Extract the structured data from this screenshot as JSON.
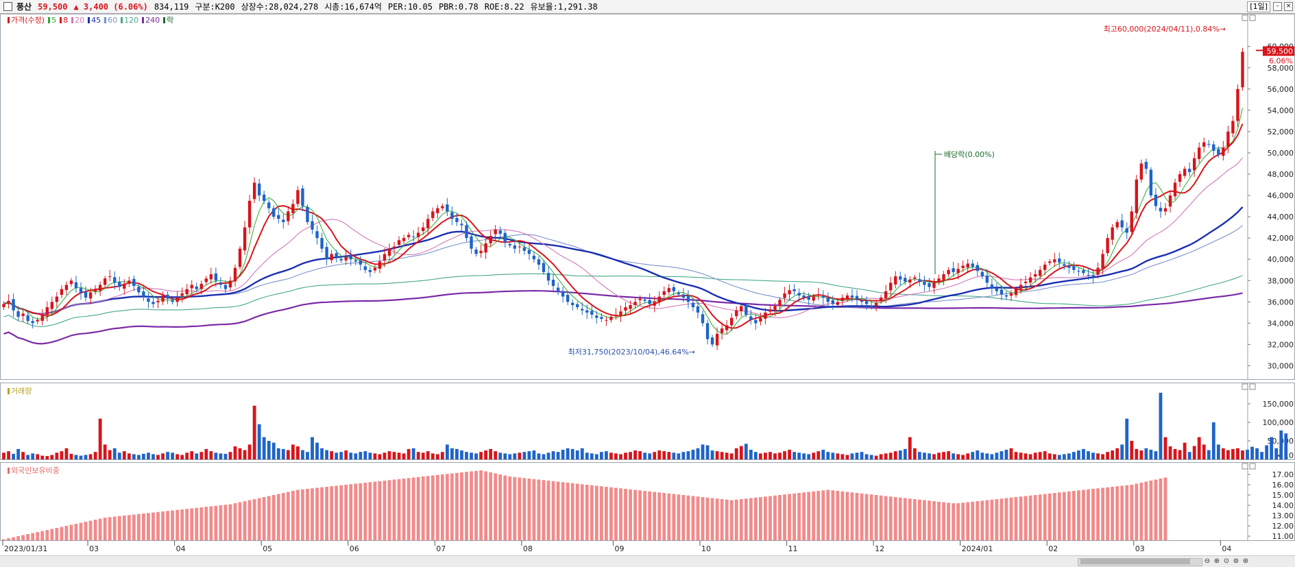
{
  "header": {
    "name": "풍산",
    "price": "59,500",
    "change": "▲ 3,400 (6.06%)",
    "volume": "834,119",
    "category": "구분:K200",
    "shares": "상장수:28,024,278",
    "market_cap": "시총:16,674억",
    "per": "PER:10.05",
    "pbr": "PBR:0.78",
    "roe": "ROE:8.22",
    "float": "유보율:1,291.38",
    "period": "[1일]"
  },
  "price_legend": [
    {
      "label": "가격(수정)",
      "color": "#d8141b"
    },
    {
      "label": "5",
      "color": "#2fa82f"
    },
    {
      "label": "8",
      "color": "#d8141b"
    },
    {
      "label": "20",
      "color": "#d078b8"
    },
    {
      "label": "45",
      "color": "#1a2fb0"
    },
    {
      "label": "60",
      "color": "#7890c8"
    },
    {
      "label": "120",
      "color": "#44a888"
    },
    {
      "label": "240",
      "color": "#7a2aa8"
    },
    {
      "label": "락",
      "color": "#1a6a2a"
    }
  ],
  "volume_legend": {
    "label": "거래량",
    "color": "#b8a020"
  },
  "foreign_legend": {
    "label": "외국인보유비중",
    "color": "#e86868"
  },
  "annotations": {
    "high": "최고60,000(2024/04/11),0.84%→",
    "low": "최저31,750(2023/10/04),46.64%→",
    "dividend": "배당락(0.00%)",
    "current_price": "59,500",
    "current_pct": "6.06%",
    "volume_unit": "× 10"
  },
  "colors": {
    "up": "#d8141b",
    "down": "#1e64c8",
    "foreign_bar": "#f28a8a"
  },
  "chart_data": [
    {
      "type": "line",
      "name": "price",
      "x_tick_labels": [
        "2023/01/31",
        "03",
        "04",
        "05",
        "06",
        "07",
        "08",
        "09",
        "10",
        "11",
        "12",
        "2024/01",
        "02",
        "03",
        "04"
      ],
      "y_ticks": [
        "30,000",
        "32,000",
        "34,000",
        "36,000",
        "38,000",
        "40,000",
        "42,000",
        "44,000",
        "46,000",
        "48,000",
        "50,000",
        "52,000",
        "54,000",
        "56,000",
        "58,000",
        "60,000"
      ],
      "ylim": [
        29000,
        61400
      ],
      "closes": [
        35800,
        36100,
        35200,
        34600,
        34900,
        34200,
        34000,
        34300,
        34700,
        35500,
        36000,
        36500,
        37200,
        37600,
        38000,
        37300,
        36800,
        36400,
        36900,
        37200,
        37600,
        38200,
        38400,
        37800,
        37400,
        37700,
        38000,
        37500,
        36900,
        36500,
        36000,
        35800,
        36100,
        36600,
        36300,
        36000,
        36400,
        36800,
        37200,
        37600,
        37200,
        37700,
        38200,
        38600,
        38000,
        37600,
        37200,
        38000,
        39200,
        41000,
        43000,
        45500,
        47200,
        46000,
        45500,
        44800,
        44000,
        43800,
        43500,
        44500,
        45200,
        46500,
        45000,
        43500,
        42800,
        42000,
        41000,
        40000,
        40500,
        40200,
        39900,
        40200,
        40000,
        39800,
        39500,
        39000,
        38800,
        39200,
        39800,
        40500,
        41000,
        41200,
        41800,
        42000,
        42300,
        42100,
        42500,
        43000,
        43800,
        44500,
        44800,
        45000,
        44500,
        43800,
        43500,
        43200,
        42000,
        41000,
        40500,
        40800,
        41500,
        42200,
        42800,
        42400,
        41600,
        41300,
        41000,
        41200,
        40800,
        40500,
        40000,
        39500,
        38800,
        38000,
        37500,
        37000,
        36500,
        36000,
        35700,
        35500,
        35200,
        35000,
        34800,
        34500,
        34400,
        34300,
        34600,
        34800,
        35100,
        35500,
        35700,
        36000,
        36300,
        36100,
        35800,
        36000,
        36500,
        37000,
        37300,
        37000,
        36700,
        36400,
        36000,
        35500,
        35000,
        34000,
        32500,
        32000,
        33000,
        33500,
        33800,
        34500,
        35200,
        35600,
        34800,
        34300,
        34000,
        34500,
        35000,
        35300,
        35600,
        36200,
        36800,
        37100,
        37000,
        36600,
        36400,
        36200,
        36500,
        36700,
        36400,
        36000,
        35800,
        36000,
        36400,
        36600,
        36400,
        36200,
        36000,
        35800,
        35600,
        35900,
        36400,
        37000,
        37800,
        38400,
        38100,
        37900,
        38100,
        38300,
        37900,
        37600,
        37400,
        37800,
        38200,
        38600,
        39000,
        38800,
        39100,
        39400,
        39600,
        39300,
        38900,
        38400,
        37800,
        37300,
        37000,
        36700,
        36500,
        36800,
        37200,
        37600,
        37900,
        38300,
        38600,
        39000,
        39500,
        39800,
        40000,
        39700,
        39400,
        39200,
        39000,
        38900,
        38700,
        38500,
        38400,
        39200,
        40500,
        42000,
        43000,
        43500,
        43000,
        42500,
        44500,
        47500,
        49000,
        48500,
        46000,
        45000,
        44500,
        44800,
        46000,
        47200,
        48000,
        48500,
        48200,
        49500,
        50500,
        51000,
        50800,
        50200,
        49800,
        50500,
        52000,
        53000,
        56000,
        59500
      ],
      "highlights": {
        "high": 60000,
        "low": 31750
      }
    },
    {
      "type": "bar",
      "name": "거래량",
      "y_ticks": [
        "50,000",
        "100,000",
        "150,000"
      ],
      "ylim": [
        0,
        200000
      ],
      "values": [
        18000,
        22000,
        15000,
        28000,
        20000,
        12000,
        16000,
        14000,
        10000,
        9000,
        12000,
        18000,
        22000,
        30000,
        15000,
        12000,
        10000,
        12000,
        14000,
        20000,
        110000,
        40000,
        25000,
        30000,
        18000,
        22000,
        16000,
        14000,
        12000,
        15000,
        18000,
        14000,
        12000,
        16000,
        20000,
        18000,
        14000,
        12000,
        18000,
        22000,
        16000,
        20000,
        28000,
        22000,
        18000,
        16000,
        15000,
        20000,
        35000,
        30000,
        25000,
        40000,
        145000,
        95000,
        60000,
        50000,
        45000,
        30000,
        28000,
        25000,
        40000,
        35000,
        25000,
        20000,
        60000,
        45000,
        30000,
        25000,
        22000,
        18000,
        20000,
        24000,
        18000,
        16000,
        20000,
        22000,
        18000,
        16000,
        14000,
        18000,
        22000,
        20000,
        18000,
        16000,
        28000,
        30000,
        20000,
        18000,
        22000,
        16000,
        14000,
        20000,
        40000,
        30000,
        28000,
        24000,
        20000,
        18000,
        16000,
        20000,
        24000,
        28000,
        22000,
        18000,
        16000,
        14000,
        16000,
        18000,
        20000,
        22000,
        24000,
        16000,
        14000,
        18000,
        22000,
        20000,
        26000,
        30000,
        28000,
        24000,
        30000,
        18000,
        16000,
        14000,
        20000,
        22000,
        18000,
        16000,
        14000,
        18000,
        20000,
        24000,
        22000,
        18000,
        16000,
        20000,
        24000,
        22000,
        20000,
        18000,
        16000,
        20000,
        22000,
        26000,
        30000,
        40000,
        38000,
        24000,
        22000,
        20000,
        18000,
        16000,
        30000,
        36000,
        42000,
        26000,
        20000,
        16000,
        18000,
        20000,
        16000,
        18000,
        22000,
        26000,
        20000,
        18000,
        16000,
        14000,
        18000,
        22000,
        26000,
        20000,
        18000,
        16000,
        14000,
        12000,
        16000,
        18000,
        20000,
        14000,
        12000,
        10000,
        14000,
        16000,
        18000,
        22000,
        24000,
        28000,
        60000,
        30000,
        20000,
        18000,
        16000,
        14000,
        18000,
        20000,
        22000,
        16000,
        14000,
        12000,
        16000,
        20000,
        24000,
        18000,
        16000,
        14000,
        18000,
        22000,
        26000,
        30000,
        20000,
        18000,
        16000,
        14000,
        18000,
        20000,
        22000,
        16000,
        14000,
        12000,
        14000,
        16000,
        20000,
        24000,
        28000,
        22000,
        18000,
        16000,
        14000,
        20000,
        24000,
        30000,
        40000,
        110000,
        50000,
        28000,
        24000,
        30000,
        26000,
        22000,
        180000,
        60000,
        35000,
        28000,
        25000,
        45000,
        20000,
        36000,
        60000,
        40000,
        25000,
        100000,
        40000,
        30000,
        25000,
        28000,
        30000,
        24000,
        26000,
        34000,
        30000,
        20000,
        38000,
        60000,
        30000,
        78000,
        70000
      ],
      "color_rule": "up days red, down days blue"
    },
    {
      "type": "bar",
      "name": "외국인보유비중",
      "y_ticks": [
        "11.00",
        "12.00",
        "13.00",
        "14.00",
        "15.00",
        "16.00",
        "17.00"
      ],
      "ylim": [
        10.6,
        17.8
      ],
      "values": [
        10.7,
        10.8,
        10.9,
        11.0,
        11.1,
        11.2,
        11.3,
        11.4,
        11.5,
        11.6,
        11.7,
        11.8,
        11.9,
        12.0,
        12.1,
        12.2,
        12.3,
        12.4,
        12.5,
        12.6,
        12.7,
        12.8,
        12.85,
        12.9,
        12.95,
        13.0,
        13.05,
        13.1,
        13.15,
        13.2,
        13.25,
        13.3,
        13.35,
        13.4,
        13.45,
        13.5,
        13.55,
        13.6,
        13.65,
        13.7,
        13.75,
        13.8,
        13.85,
        13.9,
        13.95,
        14.0,
        14.05,
        14.1,
        14.2,
        14.3,
        14.4,
        14.5,
        14.6,
        14.7,
        14.8,
        14.9,
        15.0,
        15.1,
        15.2,
        15.3,
        15.4,
        15.5,
        15.55,
        15.6,
        15.65,
        15.7,
        15.75,
        15.8,
        15.85,
        15.9,
        15.95,
        16.0,
        16.05,
        16.1,
        16.15,
        16.2,
        16.25,
        16.3,
        16.35,
        16.4,
        16.45,
        16.5,
        16.55,
        16.6,
        16.65,
        16.7,
        16.75,
        16.8,
        16.85,
        16.9,
        16.95,
        17.0,
        17.05,
        17.1,
        17.15,
        17.2,
        17.25,
        17.3,
        17.35,
        17.4,
        17.3,
        17.2,
        17.1,
        17.0,
        16.9,
        16.8,
        16.75,
        16.7,
        16.65,
        16.6,
        16.55,
        16.5,
        16.45,
        16.4,
        16.35,
        16.3,
        16.25,
        16.2,
        16.15,
        16.1,
        16.05,
        16.0,
        15.95,
        15.9,
        15.85,
        15.8,
        15.75,
        15.7,
        15.65,
        15.6,
        15.55,
        15.5,
        15.45,
        15.4,
        15.35,
        15.3,
        15.25,
        15.2,
        15.15,
        15.1,
        15.05,
        15.0,
        14.95,
        14.9,
        14.85,
        14.8,
        14.75,
        14.7,
        14.65,
        14.6,
        14.55,
        14.5,
        14.55,
        14.6,
        14.65,
        14.7,
        14.75,
        14.8,
        14.85,
        14.9,
        14.95,
        15.0,
        15.05,
        15.1,
        15.15,
        15.2,
        15.25,
        15.3,
        15.35,
        15.4,
        15.45,
        15.5,
        15.45,
        15.4,
        15.35,
        15.3,
        15.25,
        15.2,
        15.15,
        15.1,
        15.05,
        15.0,
        14.95,
        14.9,
        14.85,
        14.8,
        14.75,
        14.7,
        14.65,
        14.6,
        14.55,
        14.5,
        14.45,
        14.4,
        14.35,
        14.3,
        14.25,
        14.2,
        14.2,
        14.25,
        14.3,
        14.35,
        14.4,
        14.45,
        14.5,
        14.55,
        14.6,
        14.65,
        14.7,
        14.75,
        14.8,
        14.85,
        14.9,
        14.95,
        15.0,
        15.05,
        15.1,
        15.15,
        15.2,
        15.25,
        15.3,
        15.35,
        15.4,
        15.45,
        15.5,
        15.55,
        15.6,
        15.65,
        15.7,
        15.75,
        15.8,
        15.85,
        15.9,
        15.95,
        16.0,
        16.1,
        16.2,
        16.3,
        16.4,
        16.5,
        16.6,
        16.7
      ]
    }
  ]
}
